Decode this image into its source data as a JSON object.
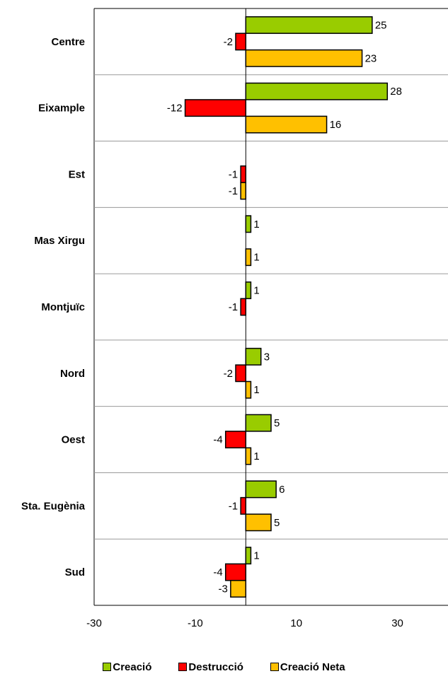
{
  "chart_data": {
    "type": "bar",
    "orientation": "horizontal",
    "categories": [
      "Centre",
      "Eixample",
      "Est",
      "Mas Xirgu",
      "Montjuïc",
      "Nord",
      "Oest",
      "Sta. Eugènia",
      "Sud"
    ],
    "series": [
      {
        "name": "Creació",
        "color": "#99CC00",
        "values": [
          25,
          28,
          null,
          1,
          1,
          3,
          5,
          6,
          1
        ]
      },
      {
        "name": "Destrucció",
        "color": "#FF0000",
        "values": [
          -2,
          -12,
          -1,
          null,
          -1,
          -2,
          -4,
          -1,
          -4
        ]
      },
      {
        "name": "Creació Neta",
        "color": "#FFC000",
        "values": [
          23,
          16,
          -1,
          1,
          null,
          1,
          1,
          5,
          -3
        ]
      }
    ],
    "xlim": [
      -30,
      40
    ],
    "xticks": [
      -30,
      -10,
      10,
      30
    ],
    "xtick_labels": [
      "-30",
      "-10",
      "10",
      "30"
    ],
    "legend_position": "bottom",
    "grid": "horizontal separators between categories"
  }
}
